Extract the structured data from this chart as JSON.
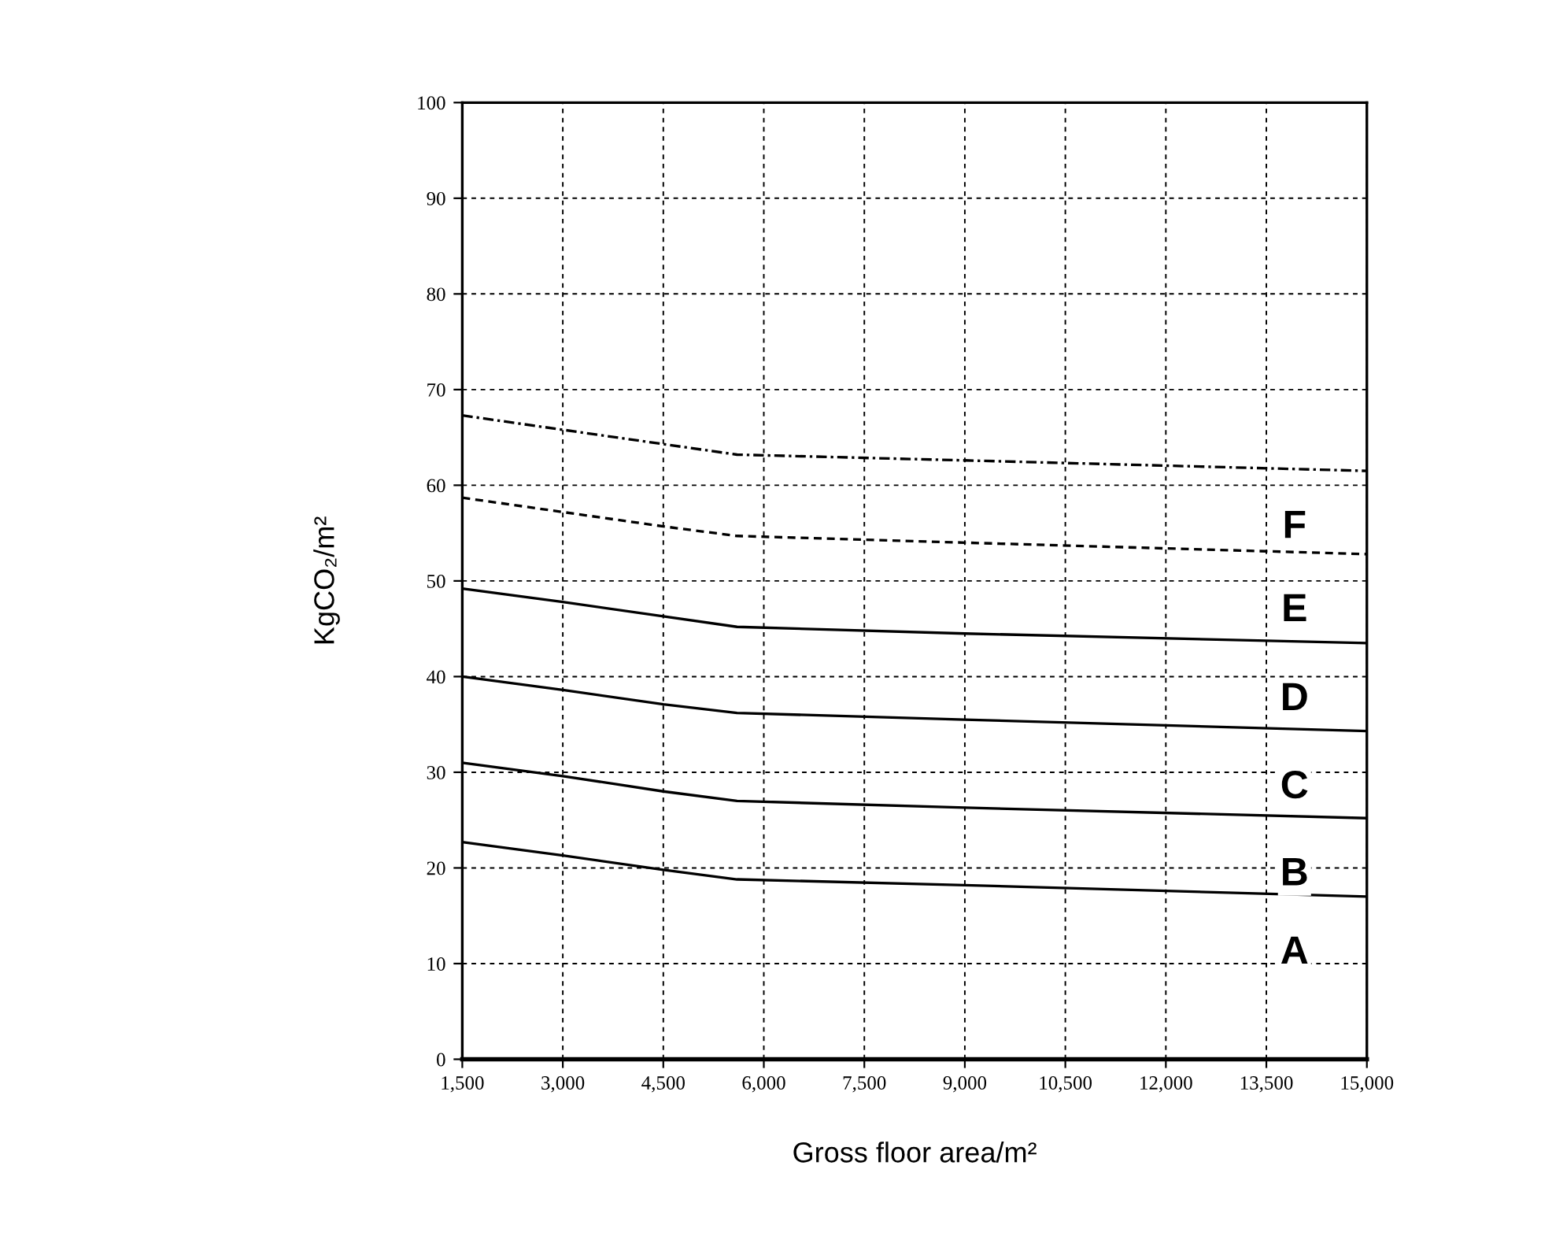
{
  "chart_data": {
    "type": "line",
    "xlabel": "Gross floor area/m²",
    "ylabel": "KgCO₂/m²",
    "xlim": [
      1500,
      15000
    ],
    "ylim": [
      0,
      100
    ],
    "xticks": [
      {
        "value": 1500,
        "label": "1,500"
      },
      {
        "value": 3000,
        "label": "3,000"
      },
      {
        "value": 4500,
        "label": "4,500"
      },
      {
        "value": 6000,
        "label": "6,000"
      },
      {
        "value": 7500,
        "label": "7,500"
      },
      {
        "value": 9000,
        "label": "9,000"
      },
      {
        "value": 10500,
        "label": "10,500"
      },
      {
        "value": 12000,
        "label": "12,000"
      },
      {
        "value": 13500,
        "label": "13,500"
      },
      {
        "value": 15000,
        "label": "15,000"
      }
    ],
    "yticks": [
      0,
      10,
      20,
      30,
      40,
      50,
      60,
      70,
      80,
      90,
      100
    ],
    "grid": true,
    "legend": false,
    "marker": "none",
    "series": [
      {
        "color": "#000000",
        "line_style": "solid",
        "x": [
          1500,
          3000,
          4500,
          5600,
          9000,
          15000
        ],
        "values": [
          22.7,
          21.3,
          19.8,
          18.8,
          18.2,
          17
        ]
      },
      {
        "color": "#000000",
        "line_style": "solid",
        "x": [
          1500,
          3000,
          4500,
          5600,
          9000,
          15000
        ],
        "values": [
          31,
          29.6,
          28,
          27,
          26.3,
          25.2
        ]
      },
      {
        "color": "#000000",
        "line_style": "solid",
        "x": [
          1500,
          3000,
          4500,
          5600,
          9000,
          15000
        ],
        "values": [
          40,
          38.6,
          37.1,
          36.2,
          35.5,
          34.3
        ]
      },
      {
        "color": "#000000",
        "line_style": "solid",
        "x": [
          1500,
          3000,
          4500,
          5600,
          9000,
          15000
        ],
        "values": [
          49.2,
          47.8,
          46.3,
          45.2,
          44.5,
          43.5
        ]
      },
      {
        "color": "#000000",
        "line_style": "dashed",
        "x": [
          1500,
          3000,
          4500,
          5600,
          9000,
          15000
        ],
        "values": [
          58.7,
          57.2,
          55.7,
          54.7,
          54,
          52.8
        ]
      },
      {
        "color": "#000000",
        "line_style": "dotted",
        "x": [
          1500,
          3000,
          4500,
          5600,
          9000,
          15000
        ],
        "values": [
          67.3,
          65.8,
          64.3,
          63.2,
          62.6,
          61.5
        ]
      }
    ],
    "annotations": [
      "A",
      "B",
      "C",
      "D",
      "E",
      "F"
    ]
  }
}
